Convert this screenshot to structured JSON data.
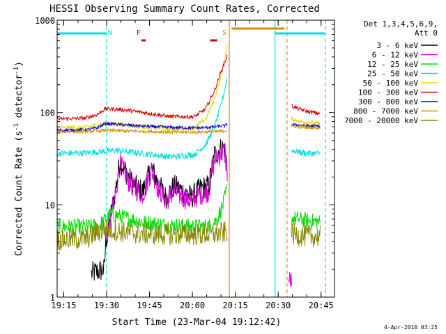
{
  "chart_data": {
    "type": "line",
    "title": "HESSI Observing Summary Count Rates, Corrected",
    "xlabel": "Start Time (23-Mar-04 19:12:42)",
    "ylabel_main": "Corrected Count Rate (s",
    "ylabel_sup1": "-1",
    "ylabel_mid": " detector",
    "ylabel_sup2": "-1",
    "ylabel_end": ")",
    "y_scale": "log",
    "ylim": [
      1,
      1000
    ],
    "y_ticks": [
      {
        "value": 1,
        "label": "1"
      },
      {
        "value": 10,
        "label": "10"
      },
      {
        "value": 100,
        "label": "100"
      },
      {
        "value": 1000,
        "label": "1000"
      }
    ],
    "xlim_minutes": [
      0,
      97
    ],
    "x_ticks": [
      {
        "t": 2.3,
        "label": "19:15"
      },
      {
        "t": 17.3,
        "label": "19:30"
      },
      {
        "t": 32.3,
        "label": "19:45"
      },
      {
        "t": 47.3,
        "label": "20:00"
      },
      {
        "t": 62.3,
        "label": "20:15"
      },
      {
        "t": 77.3,
        "label": "20:30"
      },
      {
        "t": 92.3,
        "label": "20:45"
      }
    ],
    "legend_header": [
      "Det 1,3,4,5,6,9,",
      "Att 0"
    ],
    "legend_placement": "right",
    "timestamp": "4-Apr-2010 03:25",
    "flag_labels": [
      {
        "text": "N",
        "t": 18.5,
        "color": "#00dddd"
      },
      {
        "text": "F",
        "t": 28.5,
        "color": "#dd0000"
      },
      {
        "text": "S",
        "t": 58.5,
        "color": "#dd8800"
      }
    ],
    "series": [
      {
        "name": "3 - 6 keV",
        "color": "#000000",
        "segments": [
          {
            "t": [
              12.0,
              16.5,
              17.0,
              20.0,
              22.0,
              25.0,
              27.0,
              30.0,
              33.0,
              35.0,
              38.0,
              41.0,
              44.0,
              47.0,
              50.0,
              53.0,
              55.0,
              57.0,
              58.5,
              59.5
            ],
            "y": [
              1.8,
              2.0,
              4.0,
              12.0,
              30.0,
              20.0,
              16.0,
              14.0,
              25.0,
              18.0,
              12.0,
              16.0,
              14.0,
              12.0,
              15.0,
              16.0,
              35.0,
              40.0,
              42.0,
              25.0
            ]
          }
        ]
      },
      {
        "name": "6 - 12 keV",
        "color": "#dd00dd",
        "segments": [
          {
            "t": [
              17.0,
              20.0,
              22.0,
              25.0,
              27.0,
              30.0,
              33.0,
              35.0,
              38.0,
              41.0,
              44.0,
              47.0,
              50.0,
              53.0,
              55.0,
              57.0,
              58.5,
              59.5
            ],
            "y": [
              4.0,
              11.0,
              28.0,
              18.0,
              15.0,
              13.0,
              24.0,
              16.0,
              11.0,
              14.0,
              12.0,
              11.0,
              13.0,
              14.0,
              30.0,
              35.0,
              38.0,
              22.0
            ]
          },
          {
            "t": [
              81.0,
              82.0
            ],
            "y": [
              1.5,
              1.5
            ]
          }
        ]
      },
      {
        "name": "12 - 25 keV",
        "color": "#00dd00",
        "segments": [
          {
            "t": [
              0.0,
              12.0,
              15.0,
              17.0,
              19.0,
              22.0,
              30.0,
              40.0,
              50.0,
              54.0,
              56.0,
              58.0,
              59.5
            ],
            "y": [
              5.8,
              5.8,
              6.0,
              7.0,
              8.0,
              7.5,
              6.5,
              6.0,
              5.8,
              6.0,
              7.0,
              10.0,
              15.0
            ]
          },
          {
            "t": [
              82.0,
              87.0,
              92.0
            ],
            "y": [
              7.2,
              6.8,
              6.5
            ]
          }
        ]
      },
      {
        "name": "25 - 50 keV",
        "color": "#00dddd",
        "segments": [
          {
            "t": [
              0.0,
              10.0,
              17.0,
              20.0,
              30.0,
              40.0,
              48.0,
              52.0,
              55.0,
              57.0,
              58.5,
              59.5
            ],
            "y": [
              36.0,
              36.5,
              38.0,
              39.0,
              36.0,
              33.0,
              35.0,
              45.0,
              70.0,
              110.0,
              170.0,
              240.0
            ]
          },
          {
            "t": [
              82.0,
              85.0,
              88.0,
              92.0
            ],
            "y": [
              39.0,
              37.0,
              36.0,
              36.0
            ]
          }
        ]
      },
      {
        "name": "50 - 100 keV",
        "color": "#dddd00",
        "segments": [
          {
            "t": [
              0.0,
              10.0,
              17.0,
              20.0,
              30.0,
              40.0,
              48.0,
              52.0,
              55.0,
              57.0,
              58.5,
              59.5
            ],
            "y": [
              68.0,
              69.0,
              76.0,
              75.0,
              70.0,
              66.0,
              68.0,
              85.0,
              140.0,
              230.0,
              380.0,
              520.0
            ]
          },
          {
            "t": [
              82.0,
              85.0,
              88.0,
              92.0
            ],
            "y": [
              85.0,
              80.0,
              78.0,
              75.0
            ]
          }
        ]
      },
      {
        "name": "100 - 300 keV",
        "color": "#dd0000",
        "segments": [
          {
            "t": [
              0.0,
              10.0,
              14.0,
              17.0,
              22.0,
              30.0,
              40.0,
              48.0,
              52.0,
              55.0,
              57.0,
              58.5,
              59.5
            ],
            "y": [
              85.0,
              87.0,
              95.0,
              110.0,
              108.0,
              100.0,
              90.0,
              90.0,
              110.0,
              170.0,
              260.0,
              340.0,
              420.0
            ]
          },
          {
            "t": [
              82.0,
              85.0,
              88.0,
              92.0
            ],
            "y": [
              118.0,
              108.0,
              102.0,
              97.0
            ]
          }
        ]
      },
      {
        "name": "300 - 800 keV",
        "color": "#0000dd",
        "segments": [
          {
            "t": [
              0.0,
              10.0,
              14.0,
              17.0,
              22.0,
              30.0,
              40.0,
              50.0,
              55.0,
              58.5,
              59.5
            ],
            "y": [
              64.0,
              65.0,
              68.0,
              76.0,
              74.0,
              71.0,
              69.0,
              68.0,
              70.0,
              72.0,
              74.0
            ]
          },
          {
            "t": [
              82.0,
              86.0,
              92.0
            ],
            "y": [
              74.0,
              72.0,
              71.0
            ]
          }
        ]
      },
      {
        "name": "800 - 7000 keV",
        "color": "#dd8800",
        "segments": [
          {
            "t": [
              0.0,
              10.0,
              17.0,
              25.0,
              35.0,
              45.0,
              55.0,
              58.5,
              59.5
            ],
            "y": [
              62.0,
              62.0,
              64.0,
              63.0,
              62.0,
              61.0,
              62.0,
              63.0,
              64.0
            ]
          },
          {
            "t": [
              82.0,
              86.0,
              92.0
            ],
            "y": [
              71.0,
              69.0,
              68.0
            ]
          }
        ]
      },
      {
        "name": "7000 - 20000 keV",
        "color": "#888800",
        "segments": [
          {
            "t": [
              0.0,
              10.0,
              14.0,
              17.0,
              25.0,
              35.0,
              45.0,
              55.0,
              58.5,
              59.5
            ],
            "y": [
              4.2,
              4.3,
              5.0,
              5.5,
              5.0,
              4.8,
              4.8,
              4.8,
              5.0,
              5.2
            ]
          },
          {
            "t": [
              82.0,
              87.0,
              92.0
            ],
            "y": [
              4.8,
              4.6,
              4.5
            ]
          }
        ]
      }
    ]
  }
}
